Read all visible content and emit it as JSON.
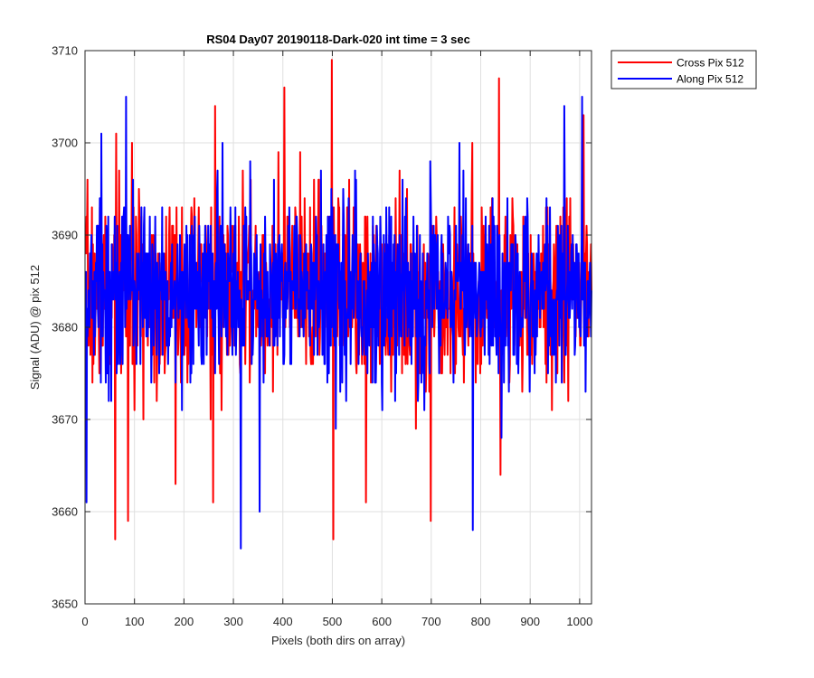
{
  "chart_data": {
    "type": "line",
    "title": "RS04 Day07 20190118-Dark-020 int time = 3 sec",
    "xlabel": "Pixels (both dirs on array)",
    "ylabel": "Signal (ADU) @ pix 512",
    "xlim": [
      0,
      1024
    ],
    "ylim": [
      3650,
      3710
    ],
    "xticks": [
      0,
      100,
      200,
      300,
      400,
      500,
      600,
      700,
      800,
      900,
      1000
    ],
    "yticks": [
      3650,
      3660,
      3670,
      3680,
      3690,
      3700,
      3710
    ],
    "grid": true,
    "legend_position": "outside-top-right",
    "series": [
      {
        "name": "Cross Pix 512",
        "color": "#ff0000",
        "noise": {
          "n_points": 1024,
          "seed": 7,
          "mean": 3684,
          "std": 5
        },
        "peaks": [
          {
            "x": 60,
            "y": 3657
          },
          {
            "x": 62,
            "y": 3701
          },
          {
            "x": 86,
            "y": 3659
          },
          {
            "x": 182,
            "y": 3663
          },
          {
            "x": 262,
            "y": 3704
          },
          {
            "x": 258,
            "y": 3661
          },
          {
            "x": 402,
            "y": 3706
          },
          {
            "x": 498,
            "y": 3709
          },
          {
            "x": 501,
            "y": 3657
          },
          {
            "x": 567,
            "y": 3661
          },
          {
            "x": 698,
            "y": 3659
          },
          {
            "x": 836,
            "y": 3707
          },
          {
            "x": 839,
            "y": 3664
          },
          {
            "x": 1007,
            "y": 3703
          }
        ]
      },
      {
        "name": "Along Pix 512",
        "color": "#0000ff",
        "noise": {
          "n_points": 1024,
          "seed": 13,
          "mean": 3684,
          "std": 5
        },
        "peaks": [
          {
            "x": 2,
            "y": 3661
          },
          {
            "x": 32,
            "y": 3701
          },
          {
            "x": 82,
            "y": 3705
          },
          {
            "x": 314,
            "y": 3656
          },
          {
            "x": 352,
            "y": 3660
          },
          {
            "x": 783,
            "y": 3658
          },
          {
            "x": 756,
            "y": 3700
          },
          {
            "x": 1004,
            "y": 3705
          },
          {
            "x": 968,
            "y": 3704
          }
        ]
      }
    ]
  }
}
